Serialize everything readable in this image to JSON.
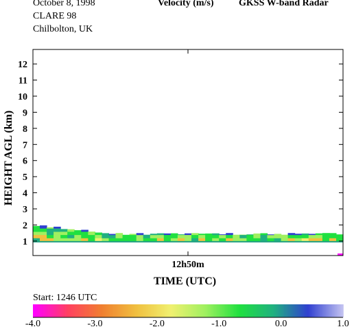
{
  "header": {
    "date": "October   8, 1998",
    "campaign": "CLARE 98",
    "location": "Chilbolton, UK",
    "quantity": "Velocity (m/s)",
    "instrument": "GKSS  W-band Radar"
  },
  "start_label": "Start:  1246 UTC",
  "colors": {
    "palette": [
      "#ff00ff",
      "#ff4060",
      "#f08030",
      "#f0c040",
      "#f0f070",
      "#a0f060",
      "#20e040",
      "#20b080",
      "#3040d0",
      "#c0c0f0"
    ],
    "bottom_line": "#20a080",
    "marker": "#ff00ff"
  },
  "chart_data": {
    "type": "heatmap",
    "title": "Velocity (m/s)",
    "xlabel": "TIME (UTC)",
    "ylabel": "HEIGHT AGL (km)",
    "x_tick_labels": [
      "12h50m"
    ],
    "y_ticks": [
      "1",
      "2",
      "3",
      "4",
      "5",
      "6",
      "7",
      "8",
      "9",
      "10",
      "11",
      "12"
    ],
    "ylim": [
      0.1,
      12.9
    ],
    "x_range_minutes": [
      0,
      10
    ],
    "colorbar": {
      "min": -4.0,
      "max": 1.0,
      "tick_labels": [
        "-4.0",
        "-3.0",
        "-2.0",
        "-1.0",
        "0.0",
        "1.0"
      ]
    },
    "echo_layer": {
      "base_km": 1.0,
      "top_km_start": 2.0,
      "top_km_end": 1.45,
      "velocity_range_ms": [
        -2.5,
        0.5
      ]
    }
  }
}
